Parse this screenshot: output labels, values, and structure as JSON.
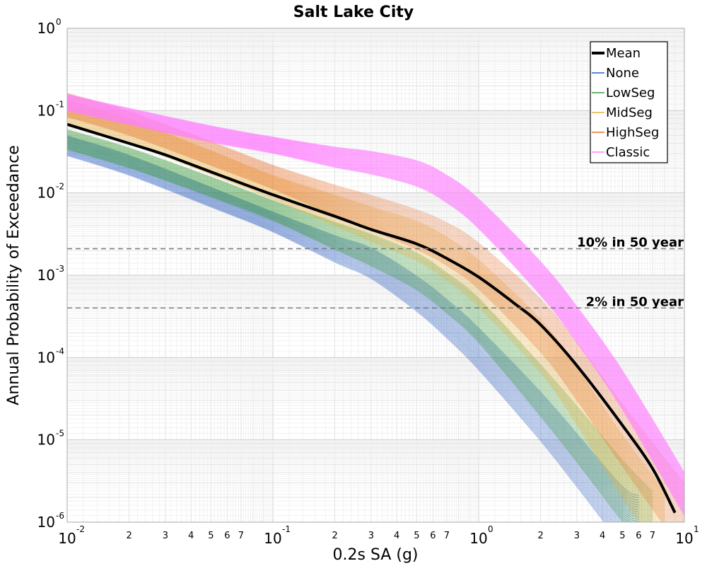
{
  "chart_data": {
    "type": "line",
    "title": "Salt Lake City",
    "xlabel": "0.2s SA (g)",
    "ylabel": "Annual Probability of Exceedance",
    "x_scale": "log",
    "y_scale": "log",
    "xlim": [
      0.01,
      10
    ],
    "ylim": [
      1e-06,
      1
    ],
    "grid": true,
    "legend_position": "top-right",
    "x_major_ticks": [
      {
        "base": "10",
        "exp": "-2"
      },
      {
        "base": "10",
        "exp": "-1"
      },
      {
        "base": "10",
        "exp": "0"
      },
      {
        "base": "10",
        "exp": "1"
      }
    ],
    "y_major_ticks": [
      {
        "base": "10",
        "exp": "0"
      },
      {
        "base": "10",
        "exp": "-1"
      },
      {
        "base": "10",
        "exp": "-2"
      },
      {
        "base": "10",
        "exp": "-3"
      },
      {
        "base": "10",
        "exp": "-4"
      },
      {
        "base": "10",
        "exp": "-5"
      },
      {
        "base": "10",
        "exp": "-6"
      }
    ],
    "x_minor_labels": [
      "2",
      "3",
      "4",
      "5",
      "6",
      "7"
    ],
    "reference_lines": [
      {
        "label": "10% in 50 year",
        "y": 0.0021
      },
      {
        "label": "2% in 50 year",
        "y": 0.0004
      }
    ],
    "series": [
      {
        "name": "Mean",
        "color": "#000000",
        "x": [
          0.01,
          0.02,
          0.03,
          0.05,
          0.1,
          0.2,
          0.3,
          0.5,
          0.7,
          1.0,
          1.5,
          2.0,
          3.0,
          5.0,
          7.0,
          9.0
        ],
        "y": [
          0.068,
          0.04,
          0.029,
          0.018,
          0.0095,
          0.0052,
          0.0036,
          0.0024,
          0.0016,
          0.00095,
          0.00045,
          0.00025,
          8e-05,
          1.5e-05,
          4.5e-06,
          1.3e-06
        ]
      },
      {
        "name": "None",
        "color": "#2b5fc0",
        "x": [
          0.01,
          0.02,
          0.05,
          0.1,
          0.2,
          0.3,
          0.5,
          0.7,
          1.0,
          2.0,
          3.0,
          5.0,
          6.0
        ],
        "y": [
          0.038,
          0.022,
          0.009,
          0.0045,
          0.0021,
          0.0014,
          0.0006,
          0.0003,
          0.00013,
          2e-05,
          6e-06,
          1.3e-06,
          1e-06
        ]
      },
      {
        "name": "LowSeg",
        "color": "#3a9a3a",
        "x": [
          0.01,
          0.02,
          0.05,
          0.1,
          0.2,
          0.3,
          0.5,
          0.7,
          1.0,
          2.0,
          3.0,
          5.0,
          7.0
        ],
        "y": [
          0.045,
          0.027,
          0.012,
          0.0062,
          0.003,
          0.002,
          0.0011,
          0.0006,
          0.00028,
          4e-05,
          1.2e-05,
          2.5e-06,
          1e-06
        ]
      },
      {
        "name": "MidSeg",
        "color": "#e8b03a",
        "x": [
          0.01,
          0.02,
          0.05,
          0.1,
          0.2,
          0.3,
          0.5,
          0.7,
          1.0,
          2.0,
          3.0,
          5.0,
          8.0
        ],
        "y": [
          0.1,
          0.058,
          0.024,
          0.012,
          0.0062,
          0.0042,
          0.0026,
          0.0016,
          0.0008,
          0.00014,
          3.5e-05,
          5e-06,
          1e-06
        ]
      },
      {
        "name": "HighSeg",
        "color": "#e8702a",
        "x": [
          0.01,
          0.02,
          0.05,
          0.1,
          0.2,
          0.3,
          0.5,
          0.7,
          1.0,
          2.0,
          3.0,
          5.0,
          10.0
        ],
        "y": [
          0.12,
          0.072,
          0.031,
          0.016,
          0.0082,
          0.0058,
          0.0036,
          0.0024,
          0.0013,
          0.00025,
          7e-05,
          1.2e-05,
          1.2e-06
        ]
      },
      {
        "name": "Classic",
        "color": "#ff80ff",
        "x": [
          0.01,
          0.02,
          0.05,
          0.1,
          0.2,
          0.3,
          0.5,
          0.7,
          1.0,
          2.0,
          3.0,
          5.0,
          10.0
        ],
        "y": [
          0.125,
          0.085,
          0.052,
          0.038,
          0.027,
          0.023,
          0.017,
          0.011,
          0.0055,
          0.0009,
          0.00025,
          4e-05,
          2.2e-06
        ]
      }
    ]
  }
}
